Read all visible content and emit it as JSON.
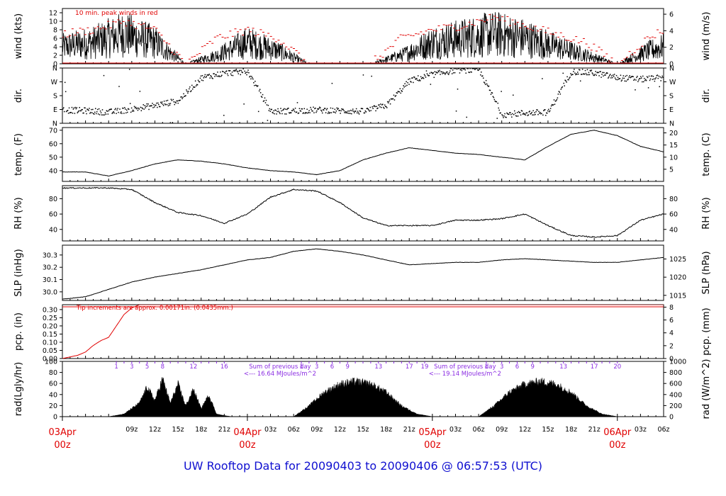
{
  "page": {
    "footer_title": "UW Rooftop Data for 20090403  to  20090406 @ 06:57:53  (UTC)"
  },
  "colors": {
    "axis": "#000000",
    "data": "#000000",
    "peak": "#e00000",
    "date_label": "#e00000",
    "solar_label": "#8a2be2",
    "footer": "#1010d0"
  },
  "chart_data": [
    {
      "type": "line",
      "title": "10 min. peak winds in red",
      "ylabel": "wind (kts)",
      "ylabel_right": "wind (m/s)",
      "ylim": [
        0,
        13
      ],
      "yticks": [
        "0",
        "2",
        "4",
        "6",
        "8",
        "10",
        "12"
      ],
      "ylim_right": [
        0,
        6.69
      ],
      "yticks_right": [
        "0",
        "2",
        "4",
        "6"
      ],
      "series": [
        {
          "name": "wind",
          "color": "#000000"
        },
        {
          "name": "10 min. peak",
          "color": "#e00000"
        }
      ],
      "x_hours": [
        0,
        4,
        8,
        12,
        16,
        20,
        24,
        28,
        32,
        36,
        40,
        44,
        48,
        52,
        56,
        60,
        64,
        68,
        72,
        76,
        78
      ],
      "values": [
        4,
        5,
        7,
        5,
        0,
        2,
        5,
        3,
        0,
        0,
        0,
        2,
        5,
        6,
        7,
        6,
        4,
        2,
        0,
        3,
        4
      ],
      "peaks": [
        7,
        8,
        10,
        8,
        0,
        6,
        8,
        6,
        0,
        0,
        0,
        6,
        8,
        9,
        11,
        9,
        7,
        5,
        0,
        6,
        8
      ]
    },
    {
      "type": "scatter",
      "ylabel": "dir.",
      "ylabel_right": "dir.",
      "ylim": [
        0,
        360
      ],
      "yticks": [
        "N",
        "E",
        "S",
        "W",
        "N"
      ],
      "yticks_right": [
        "N",
        "E",
        "S",
        "W",
        "N"
      ],
      "x_hours": [
        0,
        3,
        6,
        9,
        12,
        15,
        18,
        21,
        24,
        27,
        30,
        33,
        36,
        39,
        42,
        45,
        48,
        51,
        54,
        57,
        60,
        63,
        66,
        69,
        72,
        75,
        78
      ],
      "values": [
        90,
        85,
        75,
        95,
        120,
        150,
        300,
        330,
        340,
        80,
        85,
        90,
        85,
        80,
        120,
        280,
        320,
        350,
        350,
        60,
        70,
        75,
        340,
        330,
        300,
        290,
        300
      ]
    },
    {
      "type": "line",
      "ylabel": "temp. (F)",
      "ylabel_right": "temp. (C)",
      "ylim": [
        32,
        72
      ],
      "yticks": [
        "40",
        "50",
        "60",
        "70"
      ],
      "ylim_right": [
        0,
        22.2
      ],
      "yticks_right": [
        "5",
        "10",
        "15",
        "20"
      ],
      "x_hours": [
        0,
        3,
        6,
        9,
        12,
        15,
        18,
        21,
        24,
        27,
        30,
        33,
        36,
        39,
        42,
        45,
        48,
        51,
        54,
        57,
        60,
        63,
        66,
        69,
        72,
        75,
        78
      ],
      "values": [
        39,
        39,
        36,
        40,
        45,
        48,
        47,
        45,
        42,
        40,
        39,
        37,
        40,
        48,
        53,
        57,
        55,
        53,
        52,
        50,
        48,
        58,
        67,
        70,
        66,
        58,
        54
      ]
    },
    {
      "type": "line",
      "ylabel": "RH (%)",
      "ylabel_right": "RH (%)",
      "ylim": [
        25,
        97
      ],
      "yticks": [
        "40",
        "60",
        "80"
      ],
      "yticks_right": [
        "40",
        "60",
        "80"
      ],
      "x_hours": [
        0,
        3,
        6,
        9,
        12,
        15,
        18,
        21,
        24,
        27,
        30,
        33,
        36,
        39,
        42,
        45,
        48,
        51,
        54,
        57,
        60,
        63,
        66,
        69,
        72,
        75,
        78
      ],
      "values": [
        94,
        94,
        94,
        92,
        75,
        62,
        58,
        48,
        60,
        82,
        92,
        90,
        75,
        55,
        45,
        45,
        45,
        52,
        52,
        54,
        60,
        45,
        32,
        30,
        32,
        52,
        60
      ]
    },
    {
      "type": "line",
      "ylabel": "SLP (inHg)",
      "ylabel_right": "SLP (hPa)",
      "ylim": [
        29.93,
        30.38
      ],
      "yticks": [
        "30.0",
        "30.1",
        "30.2",
        "30.3"
      ],
      "ylim_right": [
        1013.6,
        1028.8
      ],
      "yticks_right": [
        "1015",
        "1020",
        "1025"
      ],
      "x_hours": [
        0,
        3,
        6,
        9,
        12,
        15,
        18,
        21,
        24,
        27,
        30,
        33,
        36,
        39,
        42,
        45,
        48,
        51,
        54,
        57,
        60,
        63,
        66,
        69,
        72,
        75,
        78
      ],
      "values": [
        29.94,
        29.96,
        30.02,
        30.08,
        30.12,
        30.15,
        30.18,
        30.22,
        30.26,
        30.28,
        30.33,
        30.35,
        30.33,
        30.3,
        30.26,
        30.22,
        30.23,
        30.24,
        30.24,
        30.26,
        30.27,
        30.26,
        30.25,
        30.24,
        30.24,
        30.26,
        30.28
      ]
    },
    {
      "type": "line",
      "ylabel": "pcp. (in)",
      "ylabel_right": "pcp. (mm)",
      "ylim": [
        0,
        0.33
      ],
      "yticks": [
        "0.00",
        "0.05",
        "0.10",
        "0.15",
        "0.20",
        "0.25",
        "0.30"
      ],
      "ylim_right": [
        0,
        8.38
      ],
      "yticks_right": [
        "0",
        "2",
        "4",
        "6",
        "8"
      ],
      "annotation": "Tip increments are approx. 0.00171in. (0.0435mm.)",
      "x_hours": [
        0,
        1,
        2,
        3,
        4,
        5,
        6,
        7,
        8,
        9,
        10,
        12,
        78
      ],
      "values": [
        0.0,
        0.01,
        0.02,
        0.04,
        0.08,
        0.11,
        0.13,
        0.2,
        0.27,
        0.31,
        0.33,
        0.33,
        0.33
      ]
    },
    {
      "type": "area",
      "ylabel": "rad(Lgly/hr)",
      "ylabel_right": "rad (W/m^2)",
      "ylim": [
        0,
        100
      ],
      "yticks": [
        "0",
        "20",
        "40",
        "60",
        "80",
        "100"
      ],
      "ylim_right": [
        0,
        1000
      ],
      "yticks_right": [
        "0",
        "200",
        "400",
        "600",
        "800",
        "1000"
      ],
      "day_markers": [
        {
          "labels": [
            "1",
            "3",
            "5",
            "8",
            "12",
            "16"
          ],
          "hours": [
            7,
            9,
            11,
            13,
            17,
            21
          ]
        },
        {
          "labels": [
            "1",
            "3",
            "6",
            "9",
            "13",
            "17",
            "19"
          ],
          "hours": [
            31,
            33,
            35,
            37,
            41,
            45,
            47
          ]
        },
        {
          "labels": [
            "1",
            "3",
            "6",
            "9",
            "13",
            "17",
            "20"
          ],
          "hours": [
            55,
            57,
            59,
            61,
            65,
            69,
            72
          ]
        }
      ],
      "annotations": [
        {
          "line1": "Sum of previous day",
          "line2": "<--- 16.64 MJoules/m^2",
          "hour": 24
        },
        {
          "line1": "Sum of previous day",
          "line2": "<--- 19.14 MJoules/m^2",
          "hour": 48
        }
      ],
      "x_hours": [
        6,
        8,
        10,
        11,
        12,
        13,
        14,
        15,
        16,
        17,
        18,
        19,
        20,
        21,
        22,
        30,
        32,
        34,
        36,
        38,
        40,
        42,
        44,
        46,
        48,
        54,
        56,
        58,
        60,
        62,
        64,
        66,
        68,
        70,
        72
      ],
      "values": [
        0,
        5,
        25,
        55,
        30,
        70,
        25,
        60,
        20,
        50,
        15,
        40,
        5,
        2,
        0,
        0,
        20,
        45,
        60,
        65,
        60,
        45,
        20,
        5,
        0,
        0,
        20,
        45,
        60,
        65,
        60,
        45,
        20,
        5,
        0
      ]
    }
  ],
  "x_axis": {
    "ticks": [
      "09z",
      "12z",
      "15z",
      "18z",
      "21z",
      "03z",
      "06z",
      "09z",
      "12z",
      "15z",
      "18z",
      "21z",
      "03z",
      "06z",
      "09z",
      "12z",
      "15z",
      "18z",
      "21z",
      "03z",
      "06z"
    ],
    "tick_hours": [
      9,
      12,
      15,
      18,
      21,
      27,
      30,
      33,
      36,
      39,
      42,
      45,
      51,
      54,
      57,
      60,
      63,
      66,
      69,
      75,
      78
    ],
    "date_labels": [
      {
        "date": "03Apr",
        "time": "00z",
        "hour": 0
      },
      {
        "date": "04Apr",
        "time": "00z",
        "hour": 24
      },
      {
        "date": "05Apr",
        "time": "00z",
        "hour": 48
      },
      {
        "date": "06Apr",
        "time": "00z",
        "hour": 72
      }
    ]
  }
}
